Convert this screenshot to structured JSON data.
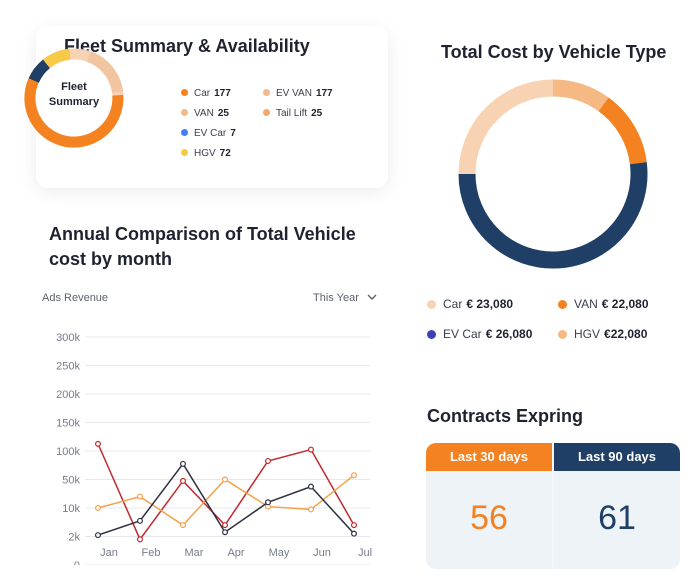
{
  "fleet": {
    "title": "Fleet Summary & Availability",
    "center_line1": "Fleet",
    "center_line2": "Summary",
    "legend": [
      {
        "label": "Car",
        "value": "177",
        "color": "#f58220"
      },
      {
        "label": "EV VAN",
        "value": "177",
        "color": "#f2b98a"
      },
      {
        "label": "VAN",
        "value": "25",
        "color": "#f2b98a"
      },
      {
        "label": "Tail Lift",
        "value": "25",
        "color": "#f5a86b"
      },
      {
        "label": "EV Car",
        "value": "7",
        "color": "#3b82f6"
      },
      {
        "label": "HGV",
        "value": "72",
        "color": "#f7c948"
      }
    ]
  },
  "annual": {
    "title_line1": "Annual Comparison of Total Vehicle",
    "title_line2": "cost by month",
    "series_label": "Ads Revenue",
    "period_select": "This Year",
    "chevron_icon": "chevron-down-icon"
  },
  "chart_data": {
    "type": "line",
    "categories": [
      "Jan",
      "Feb",
      "Mar",
      "Apr",
      "May",
      "Jun",
      "Jul"
    ],
    "y_ticks": [
      "300k",
      "250k",
      "200k",
      "150k",
      "100k",
      "50k",
      "10k",
      "2k",
      "0"
    ],
    "grid": true,
    "series": [
      {
        "color": "#c0292e",
        "values_tick_index": [
          3.75,
          7.1,
          5.05,
          6.6,
          4.35,
          3.95,
          6.6
        ]
      },
      {
        "color": "#f5a04a",
        "values_tick_index": [
          6.0,
          5.6,
          6.6,
          5.0,
          5.95,
          6.05,
          4.85
        ]
      },
      {
        "color": "#2b3040",
        "values_tick_index": [
          6.95,
          6.45,
          4.45,
          6.85,
          5.8,
          5.25,
          6.9
        ]
      }
    ]
  },
  "cost": {
    "title": "Total Cost by Vehicle Type",
    "legend": [
      {
        "label": "Car",
        "value": "€ 23,080",
        "color": "#f7d2b3"
      },
      {
        "label": "VAN",
        "value": "€ 22,080",
        "color": "#f58220"
      },
      {
        "label": "EV Car",
        "value": "€ 26,080",
        "color": "#3f3fb8"
      },
      {
        "label": "HGV",
        "value": "€22,080",
        "color": "#f7b983"
      }
    ],
    "segments": [
      {
        "name": "top-orange",
        "fraction": 0.1,
        "color": "#f7b983"
      },
      {
        "name": "right-orange",
        "fraction": 0.13,
        "color": "#f58220"
      },
      {
        "name": "navy",
        "fraction": 0.52,
        "color": "#1f3f66"
      },
      {
        "name": "peach",
        "fraction": 0.25,
        "color": "#f7d2b3"
      }
    ]
  },
  "contracts": {
    "title": "Contracts Expring",
    "tab_30": "Last 30 days",
    "tab_90": "Last 90 days",
    "count_30": "56",
    "count_90": "61",
    "color_30": "#f58220",
    "color_90": "#1f3f66"
  }
}
